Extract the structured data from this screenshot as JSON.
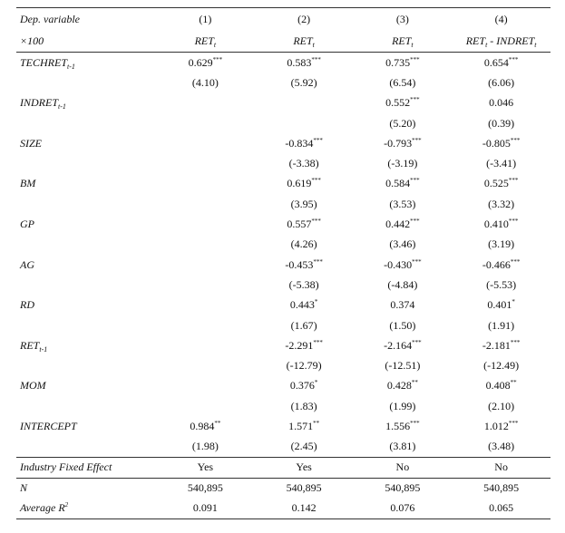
{
  "header": {
    "row1": {
      "label": "Dep. variable",
      "columns": [
        "(1)",
        "(2)",
        "(3)",
        "(4)"
      ]
    },
    "row2": {
      "label": "×100",
      "columns": [
        [
          {
            "text": "RET"
          },
          {
            "sub": "t"
          }
        ],
        [
          {
            "text": "RET"
          },
          {
            "sub": "t"
          }
        ],
        [
          {
            "text": "RET"
          },
          {
            "sub": "t"
          }
        ],
        [
          {
            "text": "RET"
          },
          {
            "sub": "t"
          },
          {
            "text": " - INDRET"
          },
          {
            "sub": "t"
          }
        ]
      ]
    }
  },
  "rows": [
    {
      "label": [
        {
          "text": "TECHRET"
        },
        {
          "sub": "t-1"
        }
      ],
      "coef": [
        {
          "value": "0.629",
          "stars": "***"
        },
        {
          "value": "0.583",
          "stars": "***"
        },
        {
          "value": "0.735",
          "stars": "***"
        },
        {
          "value": "0.654",
          "stars": "***"
        }
      ],
      "tstat": [
        "(4.10)",
        "(5.92)",
        "(6.54)",
        "(6.06)"
      ]
    },
    {
      "label": [
        {
          "text": "INDRET"
        },
        {
          "sub": "t-1"
        }
      ],
      "coef": [
        null,
        null,
        {
          "value": "0.552",
          "stars": "***"
        },
        {
          "value": "0.046"
        }
      ],
      "tstat": [
        null,
        null,
        "(5.20)",
        "(0.39)"
      ]
    },
    {
      "label": "SIZE",
      "coef": [
        null,
        {
          "value": "-0.834",
          "stars": "***"
        },
        {
          "value": "-0.793",
          "stars": "***"
        },
        {
          "value": "-0.805",
          "stars": "***"
        }
      ],
      "tstat": [
        null,
        "(-3.38)",
        "(-3.19)",
        "(-3.41)"
      ]
    },
    {
      "label": "BM",
      "coef": [
        null,
        {
          "value": "0.619",
          "stars": "***"
        },
        {
          "value": "0.584",
          "stars": "***"
        },
        {
          "value": "0.525",
          "stars": "***"
        }
      ],
      "tstat": [
        null,
        "(3.95)",
        "(3.53)",
        "(3.32)"
      ]
    },
    {
      "label": "GP",
      "coef": [
        null,
        {
          "value": "0.557",
          "stars": "***"
        },
        {
          "value": "0.442",
          "stars": "***"
        },
        {
          "value": "0.410",
          "stars": "***"
        }
      ],
      "tstat": [
        null,
        "(4.26)",
        "(3.46)",
        "(3.19)"
      ]
    },
    {
      "label": "AG",
      "coef": [
        null,
        {
          "value": "-0.453",
          "stars": "***"
        },
        {
          "value": "-0.430",
          "stars": "***"
        },
        {
          "value": "-0.466",
          "stars": "***"
        }
      ],
      "tstat": [
        null,
        "(-5.38)",
        "(-4.84)",
        "(-5.53)"
      ]
    },
    {
      "label": "RD",
      "coef": [
        null,
        {
          "value": "0.443",
          "stars": "*"
        },
        {
          "value": "0.374"
        },
        {
          "value": "0.401",
          "stars": "*"
        }
      ],
      "tstat": [
        null,
        "(1.67)",
        "(1.50)",
        "(1.91)"
      ]
    },
    {
      "label": [
        {
          "text": "RET"
        },
        {
          "sub": "t-1"
        }
      ],
      "coef": [
        null,
        {
          "value": "-2.291",
          "stars": "***"
        },
        {
          "value": "-2.164",
          "stars": "***"
        },
        {
          "value": "-2.181",
          "stars": "***"
        }
      ],
      "tstat": [
        null,
        "(-12.79)",
        "(-12.51)",
        "(-12.49)"
      ]
    },
    {
      "label": "MOM",
      "coef": [
        null,
        {
          "value": "0.376",
          "stars": "*"
        },
        {
          "value": "0.428",
          "stars": "**"
        },
        {
          "value": "0.408",
          "stars": "**"
        }
      ],
      "tstat": [
        null,
        "(1.83)",
        "(1.99)",
        "(2.10)"
      ]
    },
    {
      "label": "INTERCEPT",
      "coef": [
        {
          "value": "0.984",
          "stars": "**"
        },
        {
          "value": "1.571",
          "stars": "**"
        },
        {
          "value": "1.556",
          "stars": "***"
        },
        {
          "value": "1.012",
          "stars": "***"
        }
      ],
      "tstat": [
        "(1.98)",
        "(2.45)",
        "(3.81)",
        "(3.48)"
      ]
    }
  ],
  "footer": [
    {
      "label": "Industry Fixed Effect",
      "cells": [
        "Yes",
        "Yes",
        "No",
        "No"
      ]
    },
    {
      "label": "N",
      "cells": [
        "540,895",
        "540,895",
        "540,895",
        "540,895"
      ]
    },
    {
      "label": [
        {
          "text": "Average R"
        },
        {
          "sup": "2"
        }
      ],
      "cells": [
        "0.091",
        "0.142",
        "0.076",
        "0.065"
      ]
    }
  ]
}
